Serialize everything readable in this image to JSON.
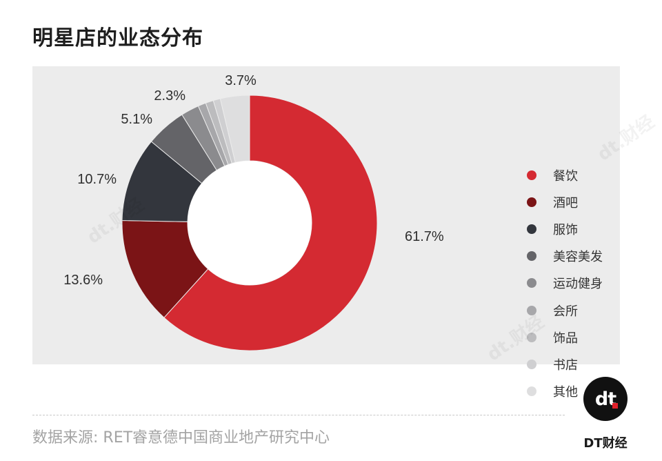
{
  "title": "明星店的业态分布",
  "source": "数据来源: RET睿意德中国商业地产研究中心",
  "brand": {
    "logo_text": "dt",
    "name": "DT财经",
    "watermark": "dt.财经"
  },
  "colors": {
    "panel_bg": "#ececec",
    "accent": "#d42a32"
  },
  "chart_data": {
    "type": "pie",
    "variant": "donut",
    "title": "明星店的业态分布",
    "categories": [
      "餐饮",
      "酒吧",
      "服饰",
      "美容美发",
      "运动健身",
      "会所",
      "饰品",
      "书店",
      "其他"
    ],
    "values": [
      61.7,
      13.6,
      10.7,
      5.1,
      2.3,
      1.0,
      1.0,
      0.9,
      3.7
    ],
    "value_labels": [
      "61.7%",
      "13.6%",
      "10.7%",
      "5.1%",
      "2.3%",
      "",
      "",
      "",
      "3.7%"
    ],
    "colors": [
      "#d42a32",
      "#7b1416",
      "#33363d",
      "#646468",
      "#8b8b8e",
      "#a7a7aa",
      "#bcbcbe",
      "#cfcfd1",
      "#dededf"
    ],
    "legend_position": "right",
    "start_angle_deg": 0,
    "direction": "clockwise"
  }
}
